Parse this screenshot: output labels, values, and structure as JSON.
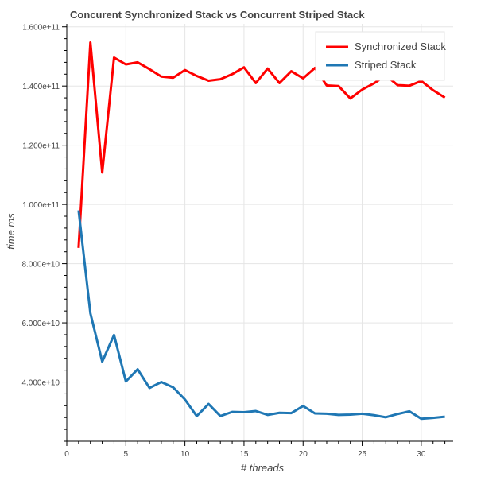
{
  "chart_data": {
    "type": "line",
    "title": "Concurent Synchronized Stack vs Concurrent Striped Stack",
    "xlabel": "# threads",
    "ylabel": "time ms",
    "xlim": [
      0,
      32.7
    ],
    "ylim": [
      20000000000,
      161000000000
    ],
    "xticks": [
      0,
      5,
      10,
      15,
      20,
      25,
      30
    ],
    "xtick_labels": [
      "0",
      "5",
      "10",
      "15",
      "20",
      "25",
      "30"
    ],
    "yticks": [
      40000000000,
      60000000000,
      80000000000,
      100000000000,
      120000000000,
      140000000000,
      160000000000
    ],
    "ytick_labels": [
      "4.000e+10",
      "6.000e+10",
      "8.000e+10",
      "1.000e+11",
      "1.200e+11",
      "1.400e+11",
      "1.600e+11"
    ],
    "grid": true,
    "legend_position": "top-right",
    "x": [
      1,
      2,
      3,
      4,
      5,
      6,
      7,
      8,
      9,
      10,
      11,
      12,
      13,
      14,
      15,
      16,
      17,
      18,
      19,
      20,
      21,
      22,
      23,
      24,
      25,
      26,
      27,
      28,
      29,
      30,
      31,
      32
    ],
    "series": [
      {
        "name": "Synchronized Stack",
        "color": "#ff0000",
        "values": [
          85300000000,
          154700000000,
          110800000000,
          149600000000,
          147300000000,
          148000000000,
          145700000000,
          143200000000,
          142800000000,
          145400000000,
          143400000000,
          141800000000,
          142300000000,
          144000000000,
          146300000000,
          141000000000,
          145900000000,
          141000000000,
          145000000000,
          142600000000,
          146100000000,
          140200000000,
          140000000000,
          135800000000,
          138800000000,
          140900000000,
          143600000000,
          140300000000,
          140100000000,
          141700000000,
          138600000000,
          136100000000
        ]
      },
      {
        "name": "Striped Stack",
        "color": "#1f77b4",
        "values": [
          98000000000,
          63200000000,
          46900000000,
          55900000000,
          40200000000,
          44300000000,
          38000000000,
          40000000000,
          38200000000,
          34100000000,
          28500000000,
          32600000000,
          28500000000,
          29900000000,
          29800000000,
          30200000000,
          28900000000,
          29600000000,
          29500000000,
          31900000000,
          29400000000,
          29300000000,
          28900000000,
          29000000000,
          29300000000,
          28800000000,
          28100000000,
          29200000000,
          30100000000,
          27600000000,
          27900000000,
          28300000000
        ]
      }
    ]
  }
}
